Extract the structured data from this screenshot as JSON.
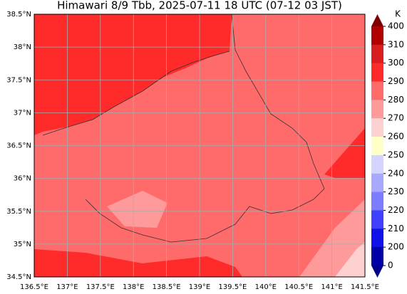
{
  "title": "Himawari 8/9 Tbb, 2025-07-11 18 UTC (07-12 03 JST)",
  "map": {
    "lat_labels": [
      "38.5°N",
      "38°N",
      "37.5°N",
      "37°N",
      "36.5°N",
      "36°N",
      "35.5°N",
      "35°N",
      "34.5°N"
    ],
    "lon_labels": [
      "136.5°E",
      "137°E",
      "137.5°E",
      "138°E",
      "138.5°E",
      "139°E",
      "139.5°E",
      "140°E",
      "140.5°E",
      "141°E",
      "141.5°E"
    ]
  },
  "colorbar": {
    "unit": "K",
    "ticks": [
      400,
      310,
      300,
      290,
      280,
      270,
      260,
      250,
      240,
      230,
      220,
      210,
      200,
      0
    ],
    "colors": [
      "#b00000",
      "#d81e1e",
      "#ff2a2a",
      "#ff6a6a",
      "#ff9a9a",
      "#ffd0d0",
      "#ffffc8",
      "#d4d4ff",
      "#a8a8ff",
      "#7c7cff",
      "#4040ff",
      "#1010e8",
      "#0000a8"
    ]
  }
}
